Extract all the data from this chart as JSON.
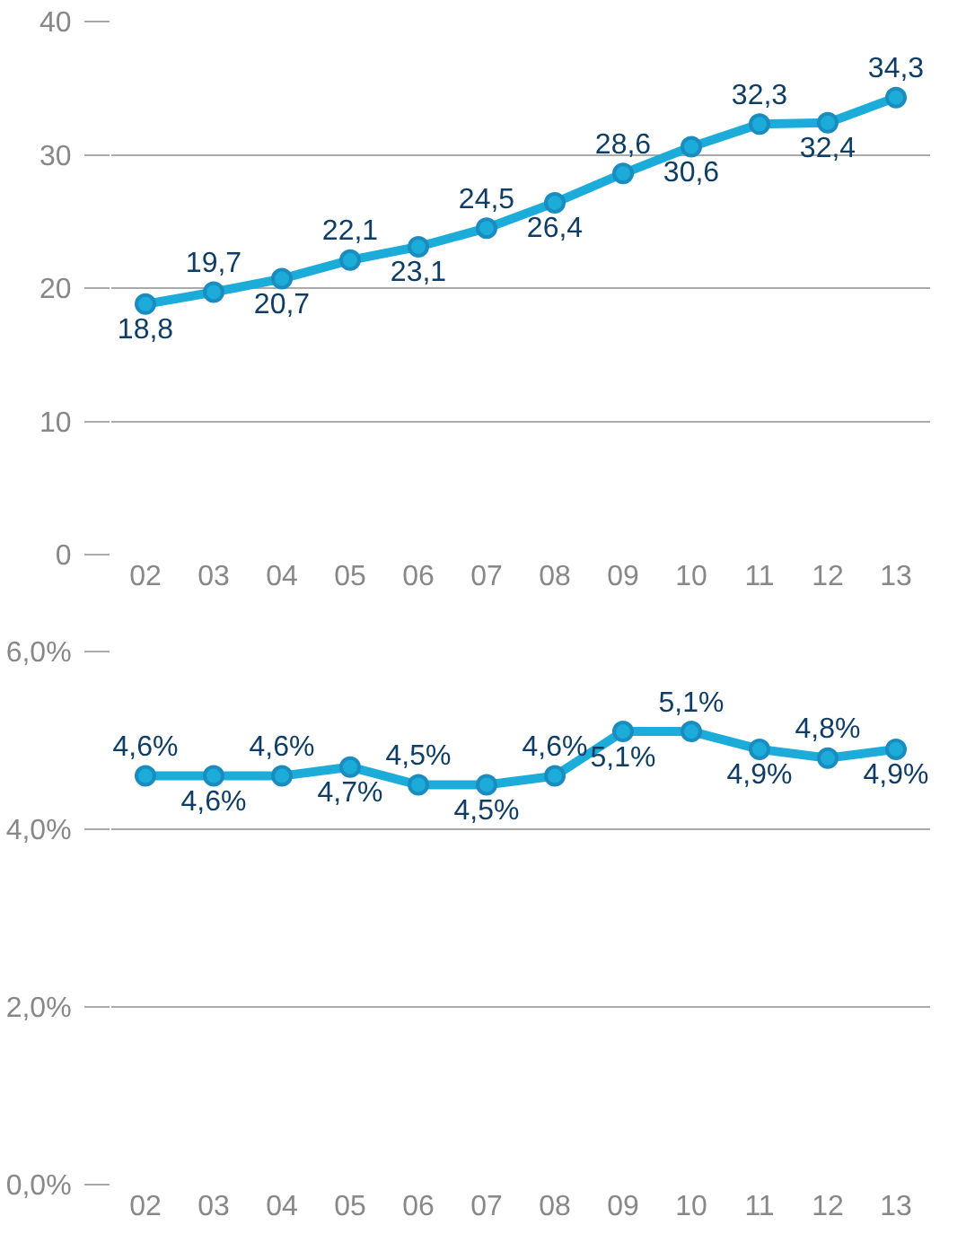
{
  "chart_data": [
    {
      "type": "line",
      "categories": [
        "02",
        "03",
        "04",
        "05",
        "06",
        "07",
        "08",
        "09",
        "10",
        "11",
        "12",
        "13"
      ],
      "series": [
        {
          "color": "#1bacd9",
          "values": [
            18.8,
            19.7,
            20.7,
            22.1,
            23.1,
            24.5,
            26.4,
            28.6,
            30.6,
            32.3,
            32.4,
            34.3
          ],
          "value_labels": [
            "18,8",
            "19,7",
            "20,7",
            "22,1",
            "23,1",
            "24,5",
            "26,4",
            "28,6",
            "30,6",
            "32,3",
            "32,4",
            "34,3"
          ]
        }
      ],
      "ylim": [
        0,
        40
      ],
      "yticks": [
        0,
        10,
        20,
        30,
        40
      ],
      "grid": "y",
      "legend": false,
      "marker": "circle",
      "line_style": "solid"
    },
    {
      "type": "line",
      "categories": [
        "02",
        "03",
        "04",
        "05",
        "06",
        "07",
        "08",
        "09",
        "10",
        "11",
        "12",
        "13"
      ],
      "series": [
        {
          "color": "#1bacd9",
          "values": [
            4.6,
            4.6,
            4.6,
            4.7,
            4.5,
            4.5,
            4.6,
            5.1,
            5.1,
            4.9,
            4.8,
            4.9
          ],
          "value_labels": [
            "4,6%",
            "4,6%",
            "4,6%",
            "4,7%",
            "4,5%",
            "4,5%",
            "4,6%",
            "5,1%",
            "5,1%",
            "4,9%",
            "4,8%",
            "4,9%"
          ]
        }
      ],
      "ylim": [
        0,
        6
      ],
      "yticks": [
        {
          "value": 0,
          "label": "0,0%"
        },
        {
          "value": 2,
          "label": "2,0%"
        },
        {
          "value": 4,
          "label": "4,0%"
        },
        {
          "value": 6,
          "label": "6,0%"
        }
      ],
      "grid": "y",
      "legend": false,
      "marker": "circle",
      "line_style": "solid"
    }
  ]
}
